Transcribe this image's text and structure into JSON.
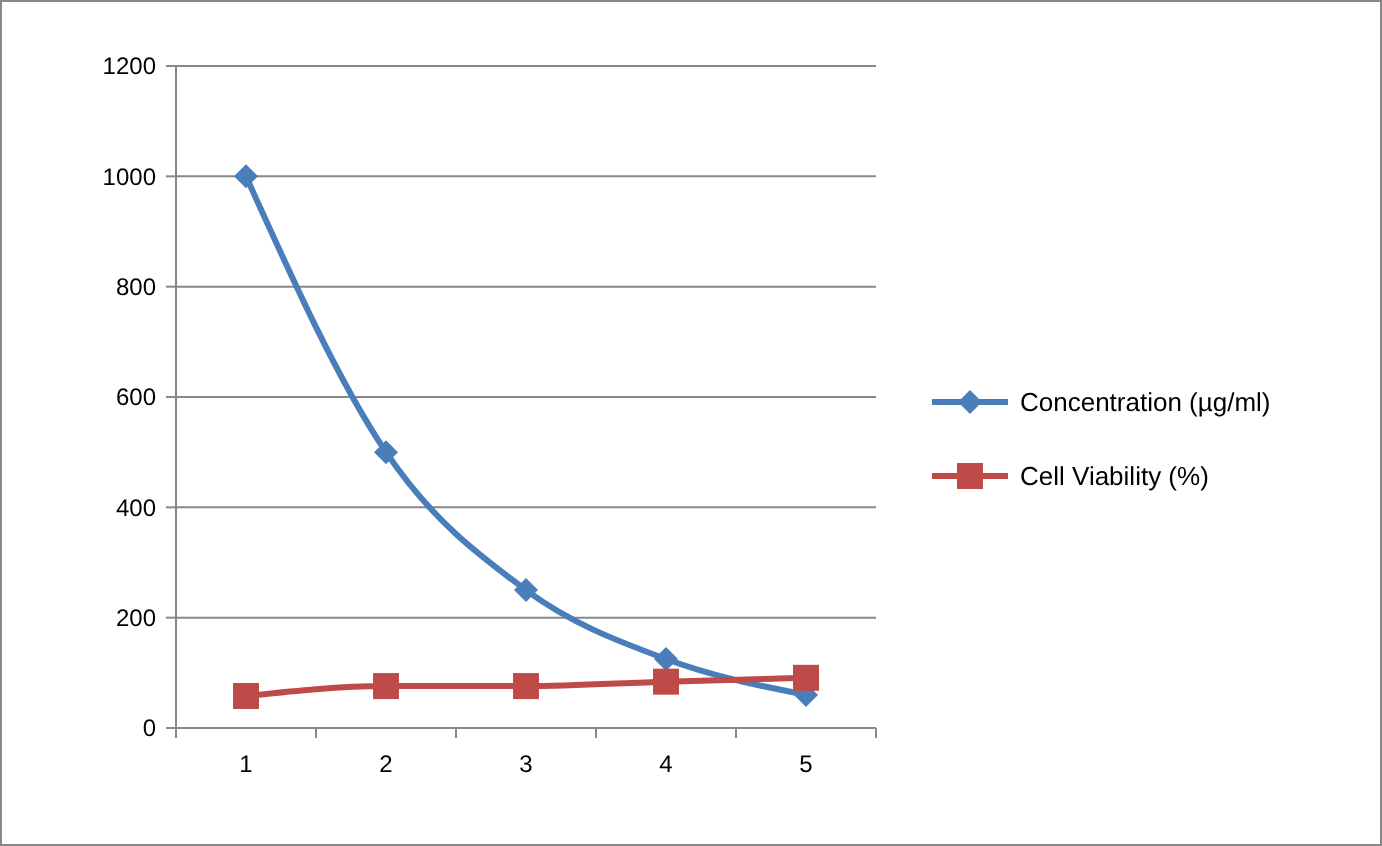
{
  "chart_data": {
    "type": "line",
    "categories": [
      "1",
      "2",
      "3",
      "4",
      "5"
    ],
    "series": [
      {
        "name": "Concentration (µg/ml)",
        "color": "#4a7ebb",
        "marker": "diamond",
        "values": [
          1000,
          500,
          250,
          125,
          60
        ]
      },
      {
        "name": "Cell Viability (%)",
        "color": "#be4b48",
        "marker": "square",
        "values": [
          58,
          76,
          76,
          84,
          91
        ]
      }
    ],
    "ylim": [
      0,
      1200
    ],
    "yticks": [
      0,
      200,
      400,
      600,
      800,
      1000,
      1200
    ],
    "grid": "y",
    "legend": "right"
  }
}
